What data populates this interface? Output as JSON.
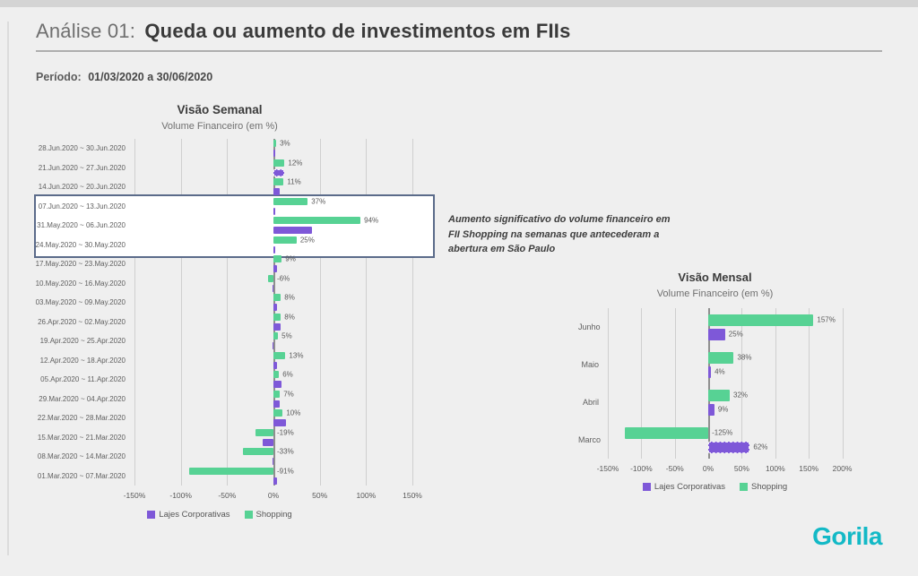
{
  "slide": {
    "title_prefix": "Análise 01:",
    "title_main": "Queda ou aumento de investimentos em FIIs",
    "period_label": "Período:",
    "period_value": "01/03/2020 a 30/06/2020",
    "annotation": "Aumento significativo do volume financeiro em FII Shopping na semanas que antecederam a abertura em São Paulo",
    "logo_text": "Gorila"
  },
  "colors": {
    "shopping_green": "#57d294",
    "lajes_purple": "#7e58d8",
    "logo_teal": "#13b9c6",
    "highlight_border": "#5b6b8a"
  },
  "chart_data": [
    {
      "id": "weekly",
      "type": "bar",
      "orientation": "horizontal",
      "title": "Visão Semanal",
      "subtitle": "Volume Financeiro (em %)",
      "categories": [
        "28.Jun.2020 ~ 30.Jun.2020",
        "21.Jun.2020 ~ 27.Jun.2020",
        "14.Jun.2020 ~ 20.Jun.2020",
        "07.Jun.2020 ~ 13.Jun.2020",
        "31.May.2020 ~ 06.Jun.2020",
        "24.May.2020 ~ 30.May.2020",
        "17.May.2020 ~ 23.May.2020",
        "10.May.2020 ~ 16.May.2020",
        "03.May.2020 ~ 09.May.2020",
        "26.Apr.2020 ~ 02.May.2020",
        "19.Apr.2020 ~ 25.Apr.2020",
        "12.Apr.2020 ~ 18.Apr.2020",
        "05.Apr.2020 ~ 11.Apr.2020",
        "29.Mar.2020 ~ 04.Apr.2020",
        "22.Mar.2020 ~ 28.Mar.2020",
        "15.Mar.2020 ~ 21.Mar.2020",
        "08.Mar.2020 ~ 14.Mar.2020",
        "01.Mar.2020 ~ 07.Mar.2020"
      ],
      "series": [
        {
          "name": "Shopping",
          "color": "#57d294",
          "show_labels": true,
          "values": [
            3,
            12,
            11,
            37,
            94,
            25,
            9,
            -6,
            8,
            8,
            5,
            13,
            6,
            7,
            10,
            -19,
            -33,
            -91
          ]
        },
        {
          "name": "Lajes Corporativas",
          "color": "#7e58d8",
          "show_labels": false,
          "dashed": [
            1
          ],
          "values": [
            1,
            12,
            7,
            1,
            42,
            1,
            4,
            -1,
            4,
            8,
            -1,
            4,
            9,
            7,
            14,
            -12,
            -1,
            4
          ]
        }
      ],
      "xlim": [
        -150,
        150
      ],
      "grid": true,
      "legend_position": "bottom",
      "ticks": [
        {
          "v": -150,
          "label": "-150%"
        },
        {
          "v": -100,
          "label": "-100%"
        },
        {
          "v": -50,
          "label": "-50%"
        },
        {
          "v": 0,
          "label": "0%"
        },
        {
          "v": 50,
          "label": "50%"
        },
        {
          "v": 100,
          "label": "100%"
        },
        {
          "v": 150,
          "label": "150%"
        }
      ],
      "legend": [
        {
          "name": "Lajes Corporativas",
          "color": "#7e58d8"
        },
        {
          "name": "Shopping",
          "color": "#57d294"
        }
      ],
      "highlighted_categories": [
        "07.Jun.2020 ~ 13.Jun.2020",
        "31.May.2020 ~ 06.Jun.2020",
        "24.May.2020 ~ 30.May.2020"
      ]
    },
    {
      "id": "monthly",
      "type": "bar",
      "orientation": "horizontal",
      "title": "Visão Mensal",
      "subtitle": "Volume Financeiro (em %)",
      "categories": [
        "Junho",
        "Maio",
        "Abril",
        "Marco"
      ],
      "series": [
        {
          "name": "Shopping",
          "color": "#57d294",
          "show_labels": true,
          "values": [
            157,
            38,
            32,
            -125
          ]
        },
        {
          "name": "Lajes Corporativas",
          "color": "#7e58d8",
          "show_labels": true,
          "dashed": [
            3
          ],
          "values": [
            25,
            4,
            9,
            62
          ]
        }
      ],
      "xlim": [
        -150,
        214
      ],
      "grid": true,
      "legend_position": "bottom",
      "ticks": [
        {
          "v": -150,
          "label": "-150%"
        },
        {
          "v": -100,
          "label": "-100%"
        },
        {
          "v": -50,
          "label": "-50%"
        },
        {
          "v": 0,
          "label": "0%"
        },
        {
          "v": 50,
          "label": "50%"
        },
        {
          "v": 100,
          "label": "100%"
        },
        {
          "v": 150,
          "label": "150%"
        },
        {
          "v": 200,
          "label": "200%"
        }
      ],
      "legend": [
        {
          "name": "Lajes Corporativas",
          "color": "#7e58d8"
        },
        {
          "name": "Shopping",
          "color": "#57d294"
        }
      ]
    }
  ]
}
